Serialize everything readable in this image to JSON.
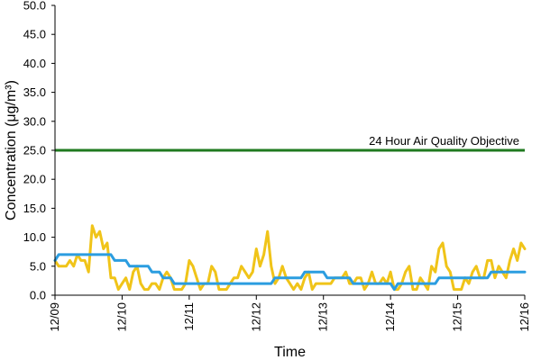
{
  "chart_data": {
    "type": "line",
    "xlabel": "Time",
    "ylabel": "Concentration (μg/m³)",
    "ylim": [
      0,
      50
    ],
    "y_ticks": [
      "0.0",
      "5.0",
      "10.0",
      "15.0",
      "20.0",
      "25.0",
      "30.0",
      "35.0",
      "40.0",
      "45.0",
      "50.0"
    ],
    "x_ticks": [
      "12/09",
      "12/10",
      "12/11",
      "12/12",
      "12/13",
      "12/14",
      "12/15",
      "12/16"
    ],
    "grid": false,
    "objective": {
      "label": "24 Hour Air Quality Objective",
      "value": 25,
      "color": "#1f7a1f"
    },
    "series": [
      {
        "color": "#f0c419",
        "values": [
          6,
          5,
          5,
          5,
          6,
          5,
          7,
          6,
          6,
          4,
          12,
          10,
          11,
          8,
          9,
          3,
          3,
          1,
          2,
          3,
          1,
          4,
          5,
          2,
          1,
          1,
          2,
          2,
          1,
          3,
          4,
          3,
          1,
          1,
          1,
          2,
          6,
          5,
          3,
          1,
          2,
          2,
          5,
          4,
          1,
          1,
          1,
          2,
          3,
          3,
          5,
          4,
          3,
          4,
          8,
          5,
          7,
          11,
          5,
          2,
          3,
          5,
          3,
          2,
          1,
          2,
          1,
          3,
          4,
          1,
          2,
          2,
          2,
          2,
          2,
          3,
          3,
          3,
          4,
          2,
          2,
          3,
          3,
          1,
          2,
          4,
          2,
          2,
          3,
          2,
          4,
          1,
          1,
          2,
          4,
          5,
          1,
          1,
          3,
          2,
          1,
          5,
          4,
          8,
          9,
          5,
          4,
          1,
          1,
          1,
          3,
          2,
          4,
          5,
          3,
          3,
          6,
          6,
          3,
          5,
          4,
          3,
          6,
          8,
          6,
          9,
          8
        ]
      },
      {
        "color": "#2b9de0",
        "values": [
          6,
          7,
          7,
          7,
          7,
          7,
          7,
          7,
          7,
          7,
          7,
          7,
          7,
          7,
          7,
          7,
          6,
          6,
          6,
          6,
          5,
          5,
          5,
          5,
          5,
          5,
          4,
          4,
          4,
          3,
          3,
          3,
          2,
          2,
          2,
          2,
          2,
          2,
          2,
          2,
          2,
          2,
          2,
          2,
          2,
          2,
          2,
          2,
          2,
          2,
          2,
          2,
          2,
          2,
          2,
          2,
          2,
          2,
          2,
          3,
          3,
          3,
          3,
          3,
          3,
          3,
          3,
          4,
          4,
          4,
          4,
          4,
          4,
          3,
          3,
          3,
          3,
          3,
          3,
          3,
          2,
          2,
          2,
          2,
          2,
          2,
          2,
          2,
          2,
          2,
          2,
          1,
          2,
          2,
          2,
          2,
          2,
          2,
          2,
          2,
          2,
          2,
          2,
          3,
          3,
          3,
          3,
          3,
          3,
          3,
          3,
          3,
          3,
          3,
          3,
          3,
          3,
          4,
          4,
          4,
          4,
          4,
          4,
          4,
          4,
          4,
          4
        ]
      }
    ]
  }
}
